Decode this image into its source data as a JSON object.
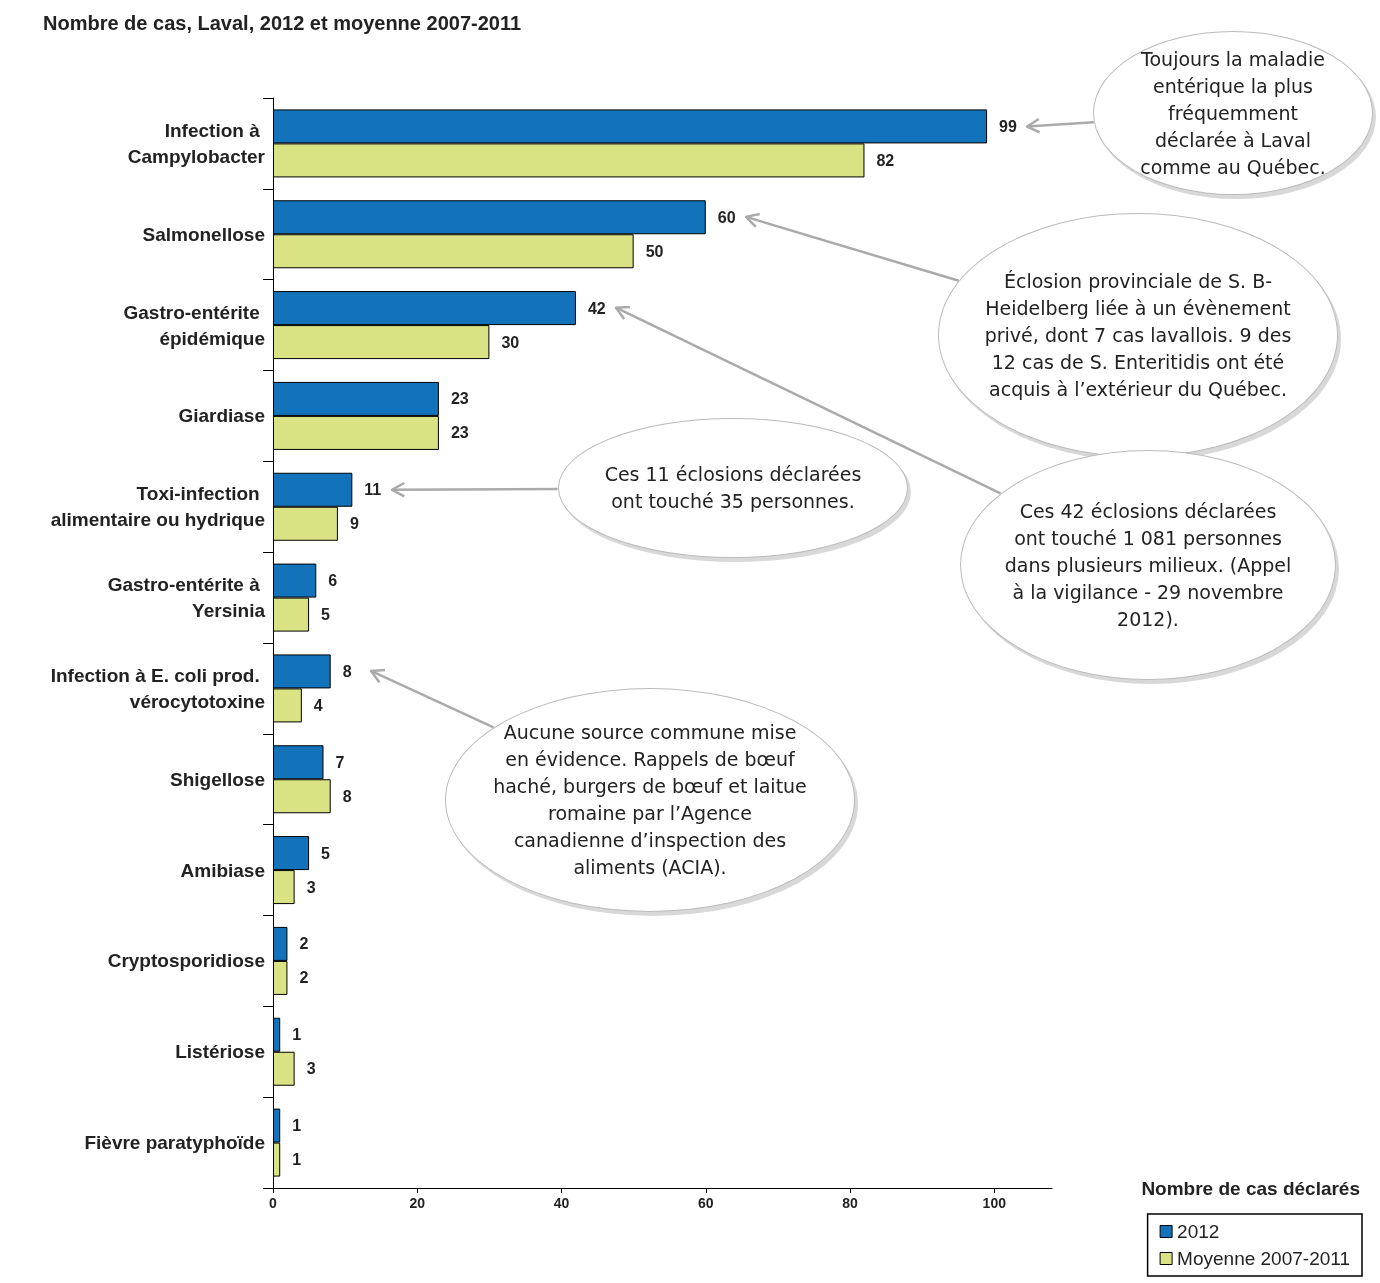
{
  "chart_data": {
    "type": "bar",
    "orientation": "horizontal",
    "title": "Nombre de cas, Laval, 2012 et moyenne 2007-2011",
    "categories": [
      "Infection à Campylobacter",
      "Salmonellose",
      "Gastro-entérite épidémique",
      "Giardiase",
      "Toxi-infection alimentaire ou hydrique",
      "Gastro-entérite à Yersinia",
      "Infection à E. coli prod. vérocytotoxine",
      "Shigellose",
      "Amibiase",
      "Cryptosporidiose",
      "Listériose",
      "Fièvre paratyphoïde"
    ],
    "series": [
      {
        "name": "2012",
        "color": "#1273bb",
        "values": [
          99,
          60,
          42,
          23,
          11,
          6,
          8,
          7,
          5,
          2,
          1,
          1
        ]
      },
      {
        "name": "Moyenne 2007-2011",
        "color": "#d9e384",
        "values": [
          82,
          50,
          30,
          23,
          9,
          5,
          4,
          8,
          3,
          2,
          3,
          1
        ]
      }
    ],
    "xlim": [
      0,
      108
    ],
    "xticks": [
      0,
      20,
      40,
      60,
      80,
      100
    ],
    "data_labels": true,
    "grid": false,
    "legend": "bottom right",
    "legend_title": "Nombre de cas déclarés",
    "annotations": [
      "Toujours la maladie entérique la plus fréquemment déclarée à Laval comme au Québec.",
      "Éclosion provinciale de S. B-Heidelberg liée à un évènement privé, dont 7 cas lavallois. 9 des 12 cas de S. Enteritidis ont été acquis à l’extérieur du Québec.",
      "Ces 11 éclosions déclarées ont touché 35 personnes.",
      "Ces 42 éclosions déclarées ont touché 1 081 personnes dans plusieurs milieux. (Appel à la vigilance - 29 novembre 2012).",
      "Aucune source commune mise en évidence. Rappels de bœuf haché, burgers de bœuf et laitue romaine par l’Agence canadienne d’inspection des aliments (ACIA)."
    ]
  }
}
